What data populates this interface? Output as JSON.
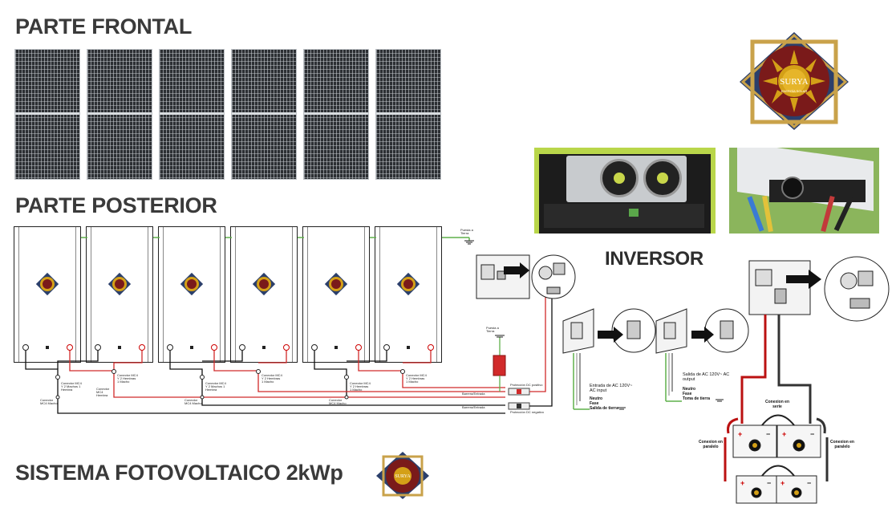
{
  "titles": {
    "front": "PARTE FRONTAL",
    "back": "PARTE POSTERIOR",
    "inverter": "INVERSOR",
    "system": "SISTEMA FOTOVOLTAICO 2kWp"
  },
  "logo": {
    "brand": "SURYA",
    "tagline": "ENERGÍA SOLAR",
    "colors": {
      "maroon": "#7a1a1a",
      "gold": "#d4a017",
      "frame": "#c9a24a",
      "blue": "#2b3f6b"
    }
  },
  "wiring_labels": {
    "ground_top": "Puesta a Tierra",
    "ground_mid": "Puesta a Tierra",
    "mc4_y_1": "Conector MC4 Y 2 Machos 1 Hembra",
    "mc4_y_2": "Conector MC4 Y 2 Hembras 1 Macho",
    "mc4_y_3": "Conector MC4 Y 2 Machos 1 Hembra",
    "mc4_y_4": "Conector MC4 Y 2 Hembras 1 Macho",
    "mc4_y_5": "Conector MC4 Y 2 Hembras 1 Macho",
    "mc4_y_6": "Conector MC4 Y 2 Hembras 1 Macho",
    "mc4_male_1": "Conector MC4 Macho",
    "mc4_hembra_1": "Conector MC4 Hembra",
    "mc4_male_2": "Conector MC4 Macho",
    "mc4_male_3": "Conector MC4 Macho",
    "barrier_1": "Barrera/Entrada",
    "barrier_2": "Barrera/Entrada",
    "dc_pos": "Protección DC positivo",
    "dc_neg": "Protección DC negativo"
  },
  "ac_input": {
    "title": "Entrada de AC 120V~ AC input",
    "neutral": "Neutro",
    "phase": "Fase",
    "ground": "Salida de tierra"
  },
  "ac_output": {
    "title": "Salida de AC 120V~ AC output",
    "neutral": "Neutro",
    "phase": "Fase",
    "ground": "Toma de tierra"
  },
  "battery": {
    "series": "Conexion en serie",
    "parallel_left": "Conexion en paralelo",
    "parallel_right": "Conexion en paralelo",
    "plus": "+",
    "minus": "−"
  },
  "terminals": {
    "neg": "−",
    "pos": "+"
  }
}
